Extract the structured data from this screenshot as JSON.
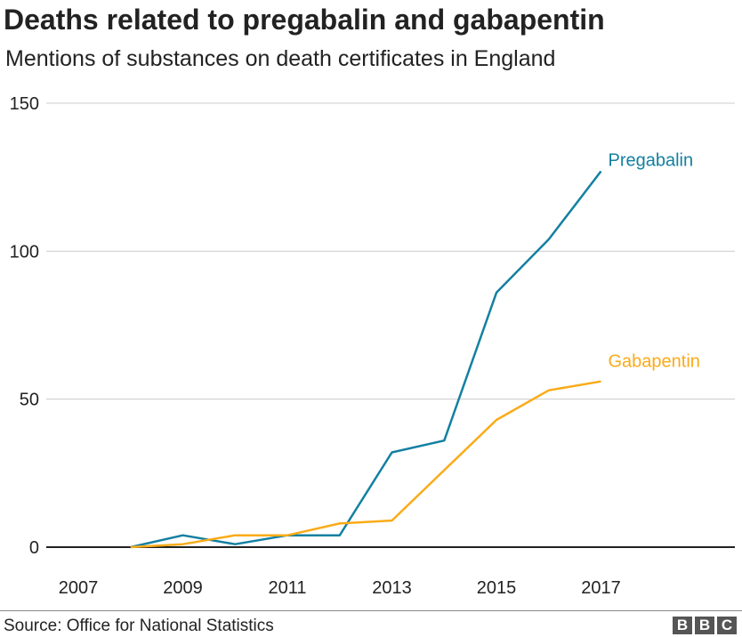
{
  "title": "Deaths related to pregabalin and gabapentin",
  "subtitle": "Mentions of substances on death certificates in England",
  "source": "Source: Office for National Statistics",
  "logo": [
    "B",
    "B",
    "C"
  ],
  "chart_data": {
    "type": "line",
    "title": "Deaths related to pregabalin and gabapentin",
    "subtitle": "Mentions of substances on death certificates in England",
    "x": [
      2007,
      2008,
      2009,
      2010,
      2011,
      2012,
      2013,
      2014,
      2015,
      2016,
      2017
    ],
    "x_ticks": [
      "2007",
      "2009",
      "2011",
      "2013",
      "2015",
      "2017"
    ],
    "y_ticks": [
      "0",
      "50",
      "100",
      "150"
    ],
    "xlim": [
      2007,
      2019.7
    ],
    "ylim": [
      0,
      150
    ],
    "grid": true,
    "legend": "inline labels at line ends",
    "series": [
      {
        "name": "Pregabalin",
        "color": "#1380A1",
        "values": [
          null,
          0,
          4,
          1,
          4,
          4,
          32,
          36,
          86,
          104,
          127
        ]
      },
      {
        "name": "Gabapentin",
        "color": "#FAAB18",
        "values": [
          null,
          0,
          1,
          4,
          4,
          8,
          9,
          26,
          43,
          53,
          56
        ]
      }
    ]
  }
}
